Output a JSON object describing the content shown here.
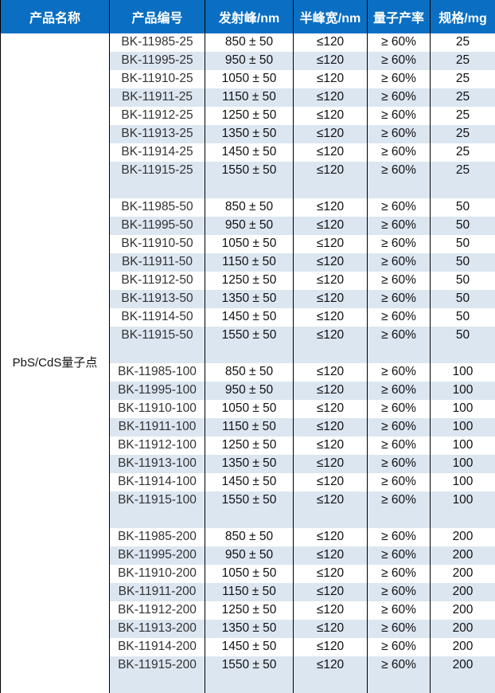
{
  "headers": [
    "产品名称",
    "产品编号",
    "发射峰/nm",
    "半峰宽/nm",
    "量子产率",
    "规格/mg"
  ],
  "product_name": "PbS/CdS量子点",
  "groups": [
    {
      "size": "25",
      "rows": [
        [
          "BK-11985-25",
          "850 ± 50"
        ],
        [
          "BK-11995-25",
          "950 ± 50"
        ],
        [
          "BK-11910-25",
          "1050 ± 50"
        ],
        [
          "BK-11911-25",
          "1150 ± 50"
        ],
        [
          "BK-11912-25",
          "1250 ± 50"
        ],
        [
          "BK-11913-25",
          "1350 ± 50"
        ],
        [
          "BK-11914-25",
          "1450 ± 50"
        ],
        [
          "BK-11915-25",
          "1550 ± 50"
        ]
      ]
    },
    {
      "size": "50",
      "rows": [
        [
          "BK-11985-50",
          "850 ± 50"
        ],
        [
          "BK-11995-50",
          "950 ± 50"
        ],
        [
          "BK-11910-50",
          "1050 ± 50"
        ],
        [
          "BK-11911-50",
          "1150 ± 50"
        ],
        [
          "BK-11912-50",
          "1250 ± 50"
        ],
        [
          "BK-11913-50",
          "1350 ± 50"
        ],
        [
          "BK-11914-50",
          "1450 ± 50"
        ],
        [
          "BK-11915-50",
          "1550 ± 50"
        ]
      ]
    },
    {
      "size": "100",
      "rows": [
        [
          "BK-11985-100",
          "850 ± 50"
        ],
        [
          "BK-11995-100",
          "950 ± 50"
        ],
        [
          "BK-11910-100",
          "1050 ± 50"
        ],
        [
          "BK-11911-100",
          "1150 ± 50"
        ],
        [
          "BK-11912-100",
          "1250 ± 50"
        ],
        [
          "BK-11913-100",
          "1350 ± 50"
        ],
        [
          "BK-11914-100",
          "1450 ± 50"
        ],
        [
          "BK-11915-100",
          "1550 ± 50"
        ]
      ]
    },
    {
      "size": "200",
      "rows": [
        [
          "BK-11985-200",
          "850 ± 50"
        ],
        [
          "BK-11995-200",
          "950 ± 50"
        ],
        [
          "BK-11910-200",
          "1050 ± 50"
        ],
        [
          "BK-11911-200",
          "1150 ± 50"
        ],
        [
          "BK-11912-200",
          "1250 ± 50"
        ],
        [
          "BK-11913-200",
          "1350 ± 50"
        ],
        [
          "BK-11914-200",
          "1450 ± 50"
        ],
        [
          "BK-11915-200",
          "1550 ± 50"
        ]
      ]
    }
  ],
  "fwhm": "≤120",
  "qy": "≥ 60%",
  "colors": {
    "header": "#0a6fc2",
    "stripe": "#dce6f1"
  }
}
